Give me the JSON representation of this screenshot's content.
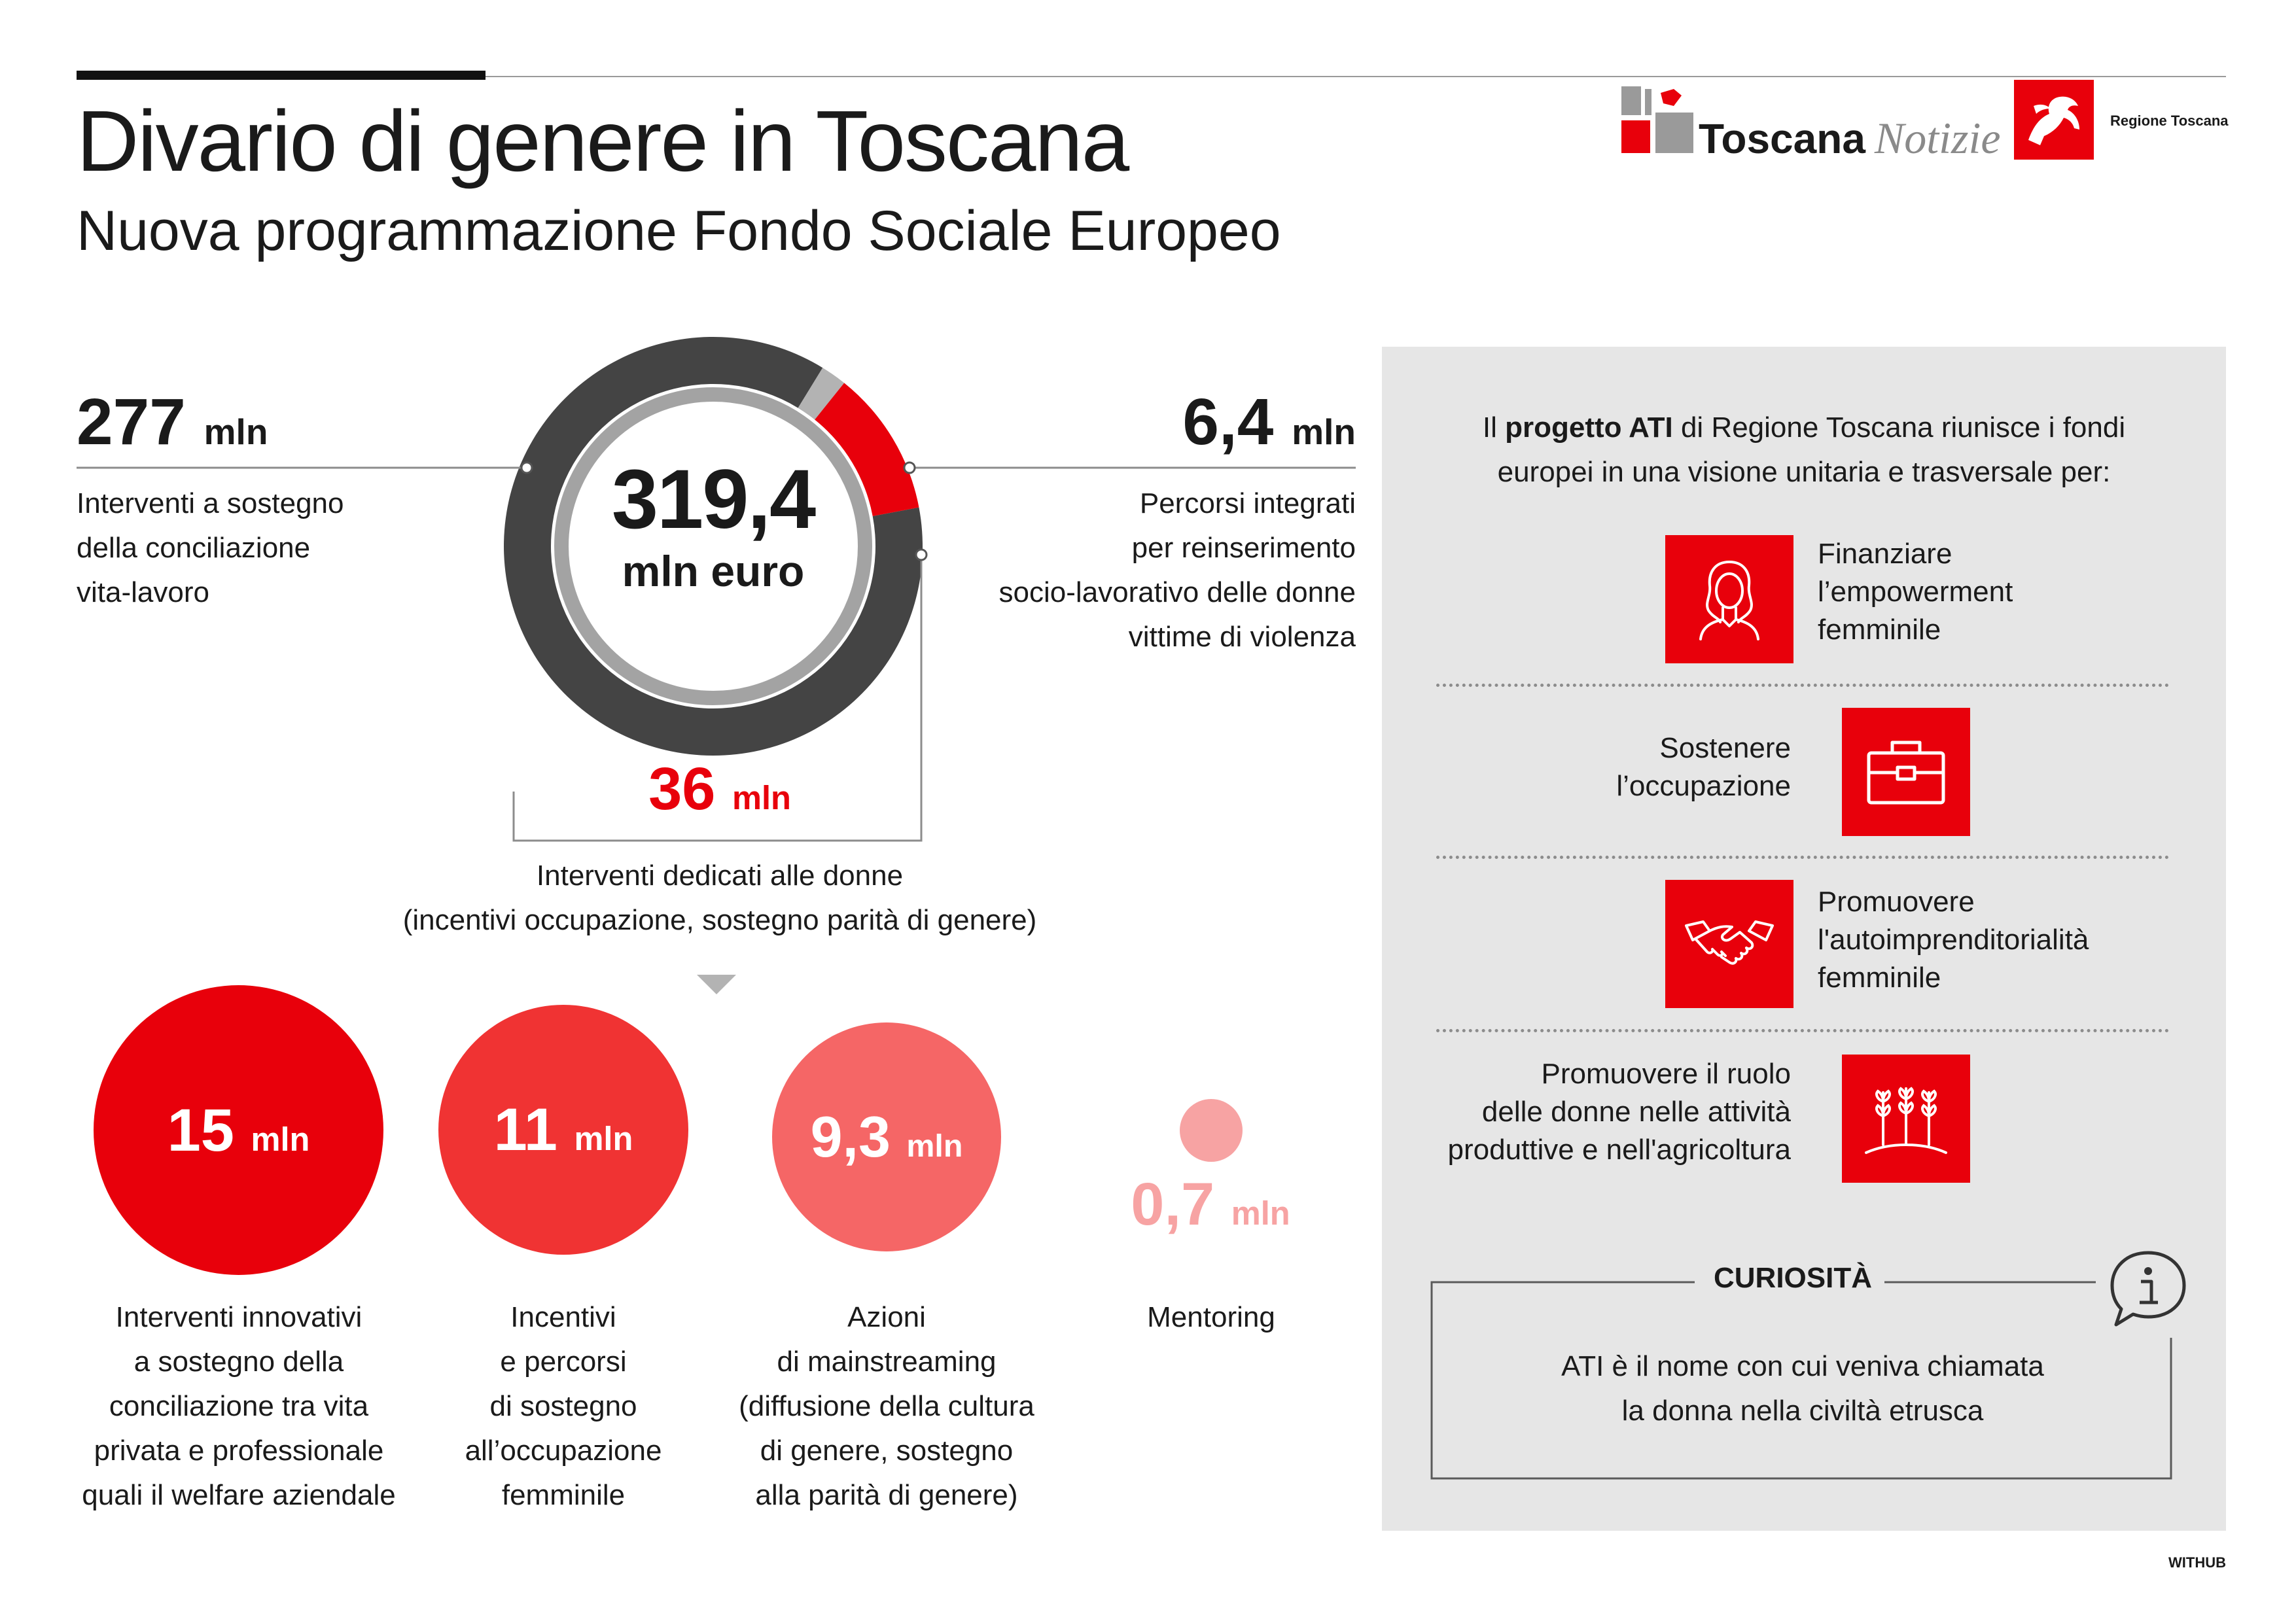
{
  "header": {
    "title": "Divario di genere in Toscana",
    "subtitle": "Nuova programmazione Fondo Sociale Europeo"
  },
  "logos": {
    "toscana_bold": "Toscana",
    "toscana_italic": "Notizie",
    "regione": "Regione Toscana"
  },
  "donut": {
    "total_value": "319,4",
    "total_unit": "mln euro",
    "segments": [
      {
        "key": "conciliazione",
        "value": 277,
        "color": "#444444"
      },
      {
        "key": "percorsi",
        "value": 6.4,
        "color": "#b3b3b3"
      },
      {
        "key": "donne",
        "value": 36,
        "color": "#e8000b"
      }
    ],
    "inner_ring_color": "#a3a3a3"
  },
  "left_stat": {
    "value": "277",
    "unit": "mln",
    "desc": [
      "Interventi a sostegno",
      "della conciliazione",
      "vita-lavoro"
    ]
  },
  "right_stat": {
    "value": "6,4",
    "unit": "mln",
    "desc": [
      "Percorsi integrati",
      "per reinserimento",
      "socio-lavorativo delle donne",
      "vittime di violenza"
    ]
  },
  "center_stat": {
    "value": "36",
    "unit": "mln",
    "desc": [
      "Interventi dedicati alle donne",
      "(incentivi occupazione, sostegno parità di genere)"
    ]
  },
  "breakdown": [
    {
      "value": "15",
      "unit": "mln",
      "amount": 15,
      "color": "#e8000b",
      "desc": [
        "Interventi innovativi",
        "a sostegno della",
        "conciliazione tra vita",
        "privata e professionale",
        "quali il welfare aziendale"
      ]
    },
    {
      "value": "11",
      "unit": "mln",
      "amount": 11,
      "color": "#f03333",
      "desc": [
        "Incentivi",
        "e percorsi",
        "di sostegno",
        "all’occupazione",
        "femminile"
      ]
    },
    {
      "value": "9,3",
      "unit": "mln",
      "amount": 9.3,
      "color": "#f56666",
      "desc": [
        "Azioni",
        "di mainstreaming",
        "(diffusione della cultura",
        "di genere, sostegno",
        "alla parità di genere)"
      ]
    },
    {
      "value": "0,7",
      "unit": "mln",
      "amount": 0.7,
      "color": "#f7a3a3",
      "desc": [
        "Mentoring"
      ]
    }
  ],
  "panel": {
    "intro_pre": "Il ",
    "intro_bold": "progetto ATI",
    "intro_post": " di Regione Toscana riunisce i fondi",
    "intro_line2": "europei in una visione unitaria e trasversale per:",
    "items": [
      {
        "icon": "woman-icon",
        "text": [
          "Finanziare",
          "l’empowerment",
          "femminile"
        ]
      },
      {
        "icon": "briefcase-icon",
        "text": [
          "Sostenere",
          "l’occupazione"
        ]
      },
      {
        "icon": "handshake-icon",
        "text": [
          "Promuovere",
          "l'autoimprenditorialità",
          "femminile"
        ]
      },
      {
        "icon": "wheat-icon",
        "text": [
          "Promuovere il ruolo",
          "delle donne nelle attività",
          "produttive e nell'agricoltura"
        ]
      }
    ],
    "curiosita": {
      "title": "CURIOSITÀ",
      "text": [
        "ATI è il nome con cui veniva chiamata",
        "la donna nella civiltà etrusca"
      ]
    }
  },
  "footer": {
    "credit": "WITHUB"
  },
  "colors": {
    "accent": "#e8000b",
    "dark": "#444444",
    "panel": "#e6e6e6"
  }
}
